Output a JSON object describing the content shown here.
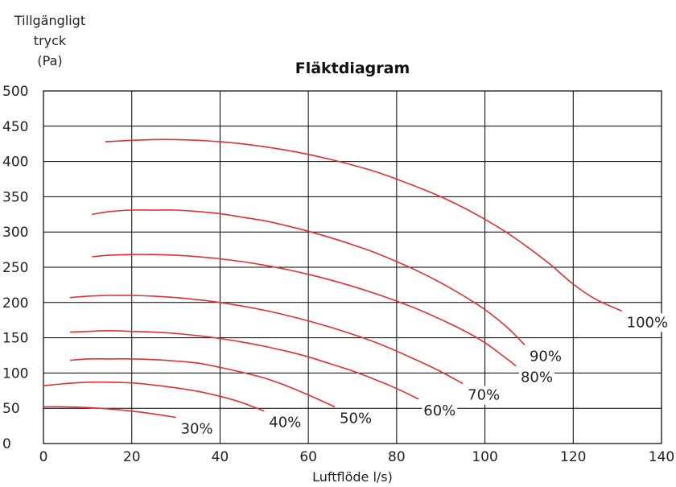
{
  "chart_data": {
    "type": "line",
    "title": "Fläktdiagram",
    "ylabel_lines": [
      "Tillgängligt",
      "tryck",
      "(Pa)"
    ],
    "xlabel": "Luftflöde l/s)",
    "xlim": [
      0,
      140
    ],
    "ylim": [
      0,
      500
    ],
    "x_ticks": [
      "0",
      "20",
      "40",
      "60",
      "80",
      "100",
      "120",
      "140"
    ],
    "y_ticks": [
      "0",
      "50",
      "100",
      "150",
      "200",
      "250",
      "300",
      "350",
      "400",
      "450",
      "500"
    ],
    "grid": true,
    "highlight_line_y": 250,
    "curve_color": "#e03030",
    "series": [
      {
        "name": "30%",
        "x": [
          0,
          5,
          10,
          15,
          20,
          25,
          30
        ],
        "y": [
          52,
          52,
          51,
          49,
          46,
          42,
          37
        ]
      },
      {
        "name": "40%",
        "x": [
          0,
          5,
          10,
          15,
          20,
          25,
          30,
          35,
          40,
          45,
          50
        ],
        "y": [
          82,
          85,
          87,
          87,
          86,
          83,
          79,
          74,
          67,
          58,
          46
        ]
      },
      {
        "name": "50%",
        "x": [
          6,
          10,
          15,
          20,
          25,
          30,
          35,
          40,
          45,
          50,
          55,
          60,
          66
        ],
        "y": [
          118,
          120,
          120,
          120,
          119,
          117,
          114,
          108,
          101,
          93,
          82,
          69,
          52
        ]
      },
      {
        "name": "60%",
        "x": [
          6,
          10,
          15,
          20,
          25,
          30,
          35,
          40,
          45,
          50,
          55,
          60,
          65,
          70,
          75,
          80,
          85
        ],
        "y": [
          158,
          159,
          160,
          159,
          158,
          156,
          153,
          149,
          144,
          138,
          131,
          123,
          113,
          103,
          91,
          78,
          63
        ]
      },
      {
        "name": "70%",
        "x": [
          6,
          10,
          15,
          20,
          25,
          30,
          35,
          40,
          45,
          50,
          55,
          60,
          65,
          70,
          75,
          80,
          85,
          90,
          95
        ],
        "y": [
          207,
          209,
          210,
          210,
          209,
          207,
          204,
          200,
          195,
          189,
          182,
          174,
          165,
          155,
          144,
          131,
          117,
          102,
          85
        ]
      },
      {
        "name": "80%",
        "x": [
          11,
          15,
          20,
          25,
          30,
          35,
          40,
          45,
          50,
          55,
          60,
          65,
          70,
          75,
          80,
          85,
          90,
          95,
          100,
          105,
          107
        ],
        "y": [
          265,
          267,
          268,
          268,
          267,
          265,
          262,
          258,
          253,
          247,
          240,
          232,
          223,
          213,
          202,
          190,
          176,
          161,
          143,
          120,
          110
        ]
      },
      {
        "name": "90%",
        "x": [
          11,
          15,
          20,
          25,
          30,
          35,
          40,
          45,
          50,
          55,
          60,
          65,
          70,
          75,
          80,
          85,
          90,
          95,
          100,
          105,
          109
        ],
        "y": [
          325,
          329,
          331,
          331,
          331,
          329,
          326,
          321,
          316,
          309,
          301,
          292,
          282,
          271,
          258,
          244,
          228,
          210,
          190,
          165,
          140
        ]
      },
      {
        "name": "100%",
        "x": [
          14,
          20,
          25,
          30,
          35,
          40,
          45,
          50,
          55,
          60,
          65,
          70,
          75,
          80,
          85,
          90,
          95,
          100,
          105,
          110,
          115,
          120,
          125,
          131
        ],
        "y": [
          428,
          430,
          431,
          431,
          430,
          428,
          425,
          421,
          416,
          410,
          403,
          395,
          386,
          375,
          363,
          350,
          335,
          318,
          299,
          277,
          253,
          226,
          205,
          188
        ]
      }
    ]
  }
}
